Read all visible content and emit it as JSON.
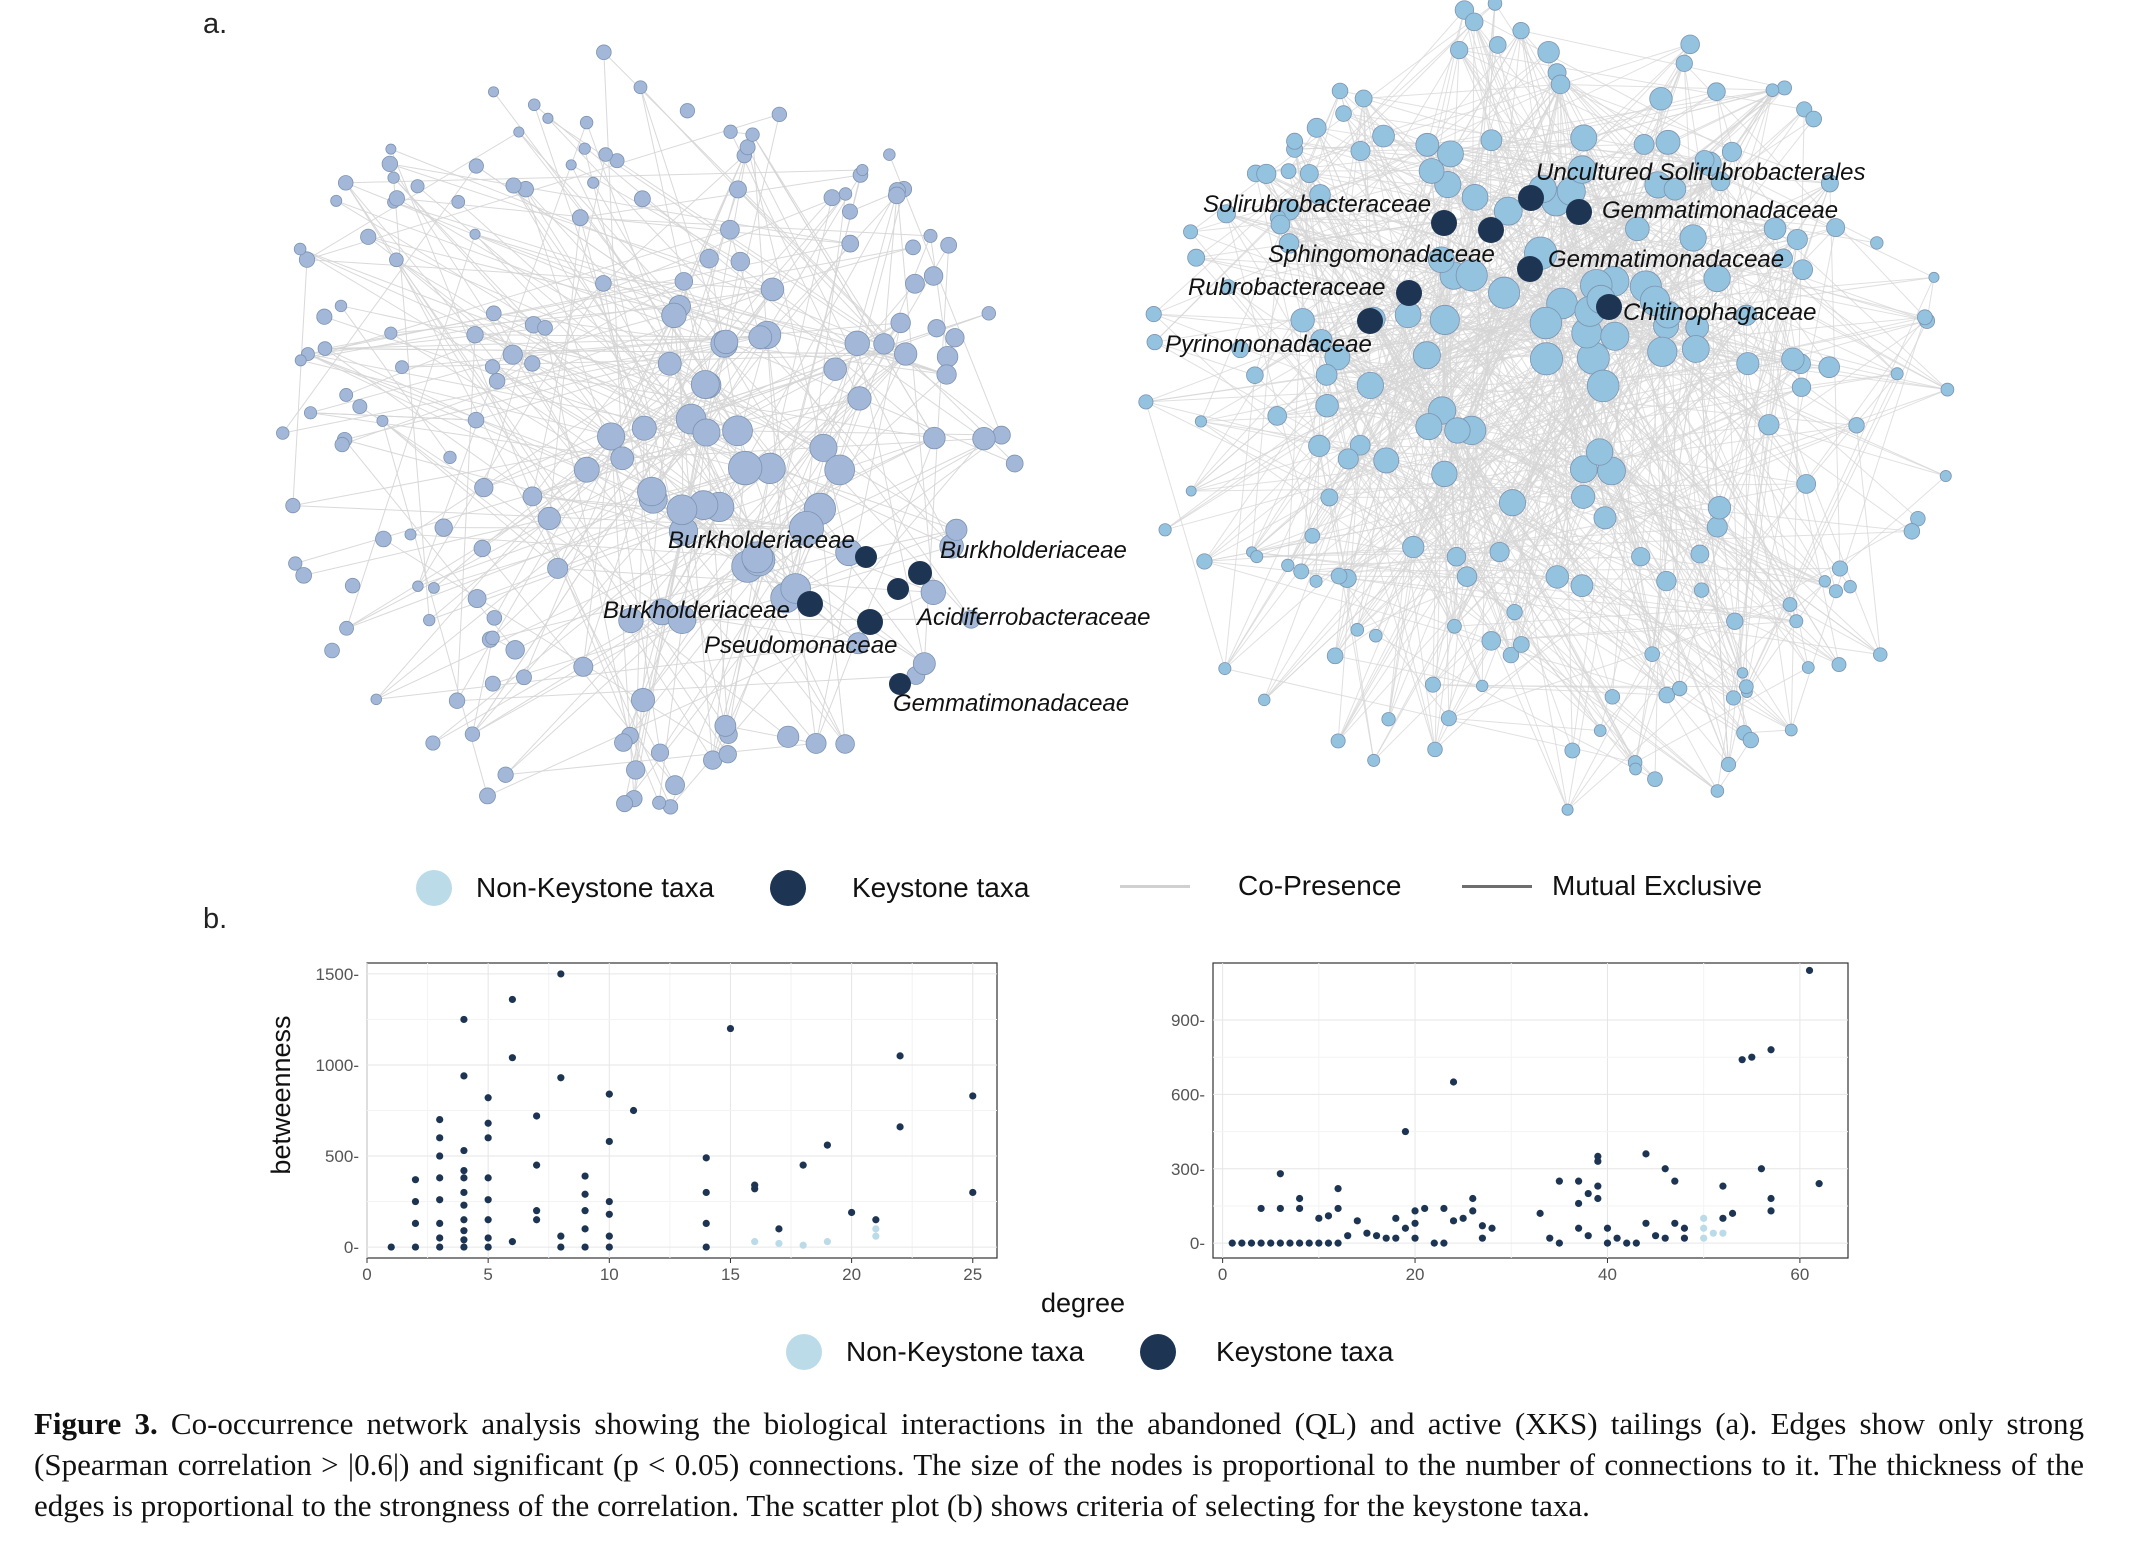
{
  "panels": {
    "a": "a.",
    "b": "b."
  },
  "colors": {
    "non_keystone_left": "#a3b8d9",
    "non_keystone_right": "#93c3df",
    "keystone": "#1d3553",
    "edge": "#d5d5d5",
    "edge_dark": "#6e6e6e",
    "scatter_non_keystone": "#bcdbe9"
  },
  "network": {
    "left_keystone_labels": [
      "Burkholderiaceae",
      "Burkholderiaceae",
      "Burkholderiaceae",
      "Acidiferrobacteraceae",
      "Pseudomonaceae",
      "Gemmatimonadaceae"
    ],
    "right_keystone_labels": [
      "Uncultured Solirubrobacterales",
      "Solirubrobacteraceae",
      "Gemmatimonadaceae",
      "Sphingomonadaceae",
      "Gemmatimonadaceae",
      "Rubrobacteraceae",
      "Chitinophagaceae",
      "Pyrinomonadaceae"
    ]
  },
  "legend_top": {
    "non_keystone": "Non-Keystone taxa",
    "keystone": "Keystone taxa",
    "co_presence": "Co-Presence",
    "mutual_exclusive": "Mutual Exclusive"
  },
  "legend_bottom": {
    "non_keystone": "Non-Keystone taxa",
    "keystone": "Keystone taxa"
  },
  "chart_data": [
    {
      "type": "scatter",
      "title": "",
      "xlabel": "degree",
      "ylabel": "betweenness",
      "xlim": [
        0,
        26
      ],
      "ylim": [
        -60,
        1560
      ],
      "xticks": [
        0,
        5,
        10,
        15,
        20,
        25
      ],
      "yticks": [
        0,
        500,
        1000,
        1500
      ],
      "grid": true,
      "series": [
        {
          "name": "Keystone taxa",
          "points": [
            [
              1,
              0
            ],
            [
              2,
              0
            ],
            [
              2,
              130
            ],
            [
              2,
              250
            ],
            [
              2,
              370
            ],
            [
              3,
              0
            ],
            [
              3,
              50
            ],
            [
              3,
              130
            ],
            [
              3,
              260
            ],
            [
              3,
              380
            ],
            [
              3,
              500
            ],
            [
              3,
              600
            ],
            [
              3,
              700
            ],
            [
              4,
              0
            ],
            [
              4,
              40
            ],
            [
              4,
              90
            ],
            [
              4,
              150
            ],
            [
              4,
              230
            ],
            [
              4,
              300
            ],
            [
              4,
              380
            ],
            [
              4,
              420
            ],
            [
              4,
              530
            ],
            [
              4,
              940
            ],
            [
              4,
              1250
            ],
            [
              5,
              0
            ],
            [
              5,
              50
            ],
            [
              5,
              150
            ],
            [
              5,
              260
            ],
            [
              5,
              380
            ],
            [
              5,
              600
            ],
            [
              5,
              680
            ],
            [
              5,
              820
            ],
            [
              6,
              30
            ],
            [
              6,
              1040
            ],
            [
              6,
              1360
            ],
            [
              7,
              150
            ],
            [
              7,
              200
            ],
            [
              7,
              450
            ],
            [
              7,
              720
            ],
            [
              8,
              0
            ],
            [
              8,
              60
            ],
            [
              8,
              930
            ],
            [
              8,
              1500
            ],
            [
              9,
              0
            ],
            [
              9,
              100
            ],
            [
              9,
              200
            ],
            [
              9,
              290
            ],
            [
              9,
              390
            ],
            [
              10,
              0
            ],
            [
              10,
              60
            ],
            [
              10,
              180
            ],
            [
              10,
              250
            ],
            [
              10,
              580
            ],
            [
              10,
              840
            ],
            [
              11,
              750
            ],
            [
              14,
              0
            ],
            [
              14,
              130
            ],
            [
              14,
              300
            ],
            [
              14,
              490
            ],
            [
              15,
              1200
            ],
            [
              16,
              320
            ],
            [
              16,
              340
            ],
            [
              17,
              100
            ],
            [
              18,
              450
            ],
            [
              19,
              560
            ],
            [
              20,
              190
            ],
            [
              21,
              150
            ],
            [
              22,
              660
            ],
            [
              22,
              1050
            ],
            [
              25,
              300
            ],
            [
              25,
              830
            ]
          ]
        },
        {
          "name": "Non-Keystone taxa",
          "points": [
            [
              16,
              30
            ],
            [
              17,
              20
            ],
            [
              18,
              10
            ],
            [
              19,
              30
            ],
            [
              21,
              60
            ],
            [
              21,
              100
            ]
          ]
        }
      ]
    },
    {
      "type": "scatter",
      "title": "",
      "xlabel": "degree",
      "ylabel": "",
      "xlim": [
        -1,
        65
      ],
      "ylim": [
        -60,
        1130
      ],
      "xticks": [
        0,
        20,
        40,
        60
      ],
      "yticks": [
        0,
        300,
        600,
        900
      ],
      "grid": true,
      "series": [
        {
          "name": "Keystone taxa",
          "points": [
            [
              1,
              0
            ],
            [
              2,
              0
            ],
            [
              3,
              0
            ],
            [
              4,
              0
            ],
            [
              5,
              0
            ],
            [
              6,
              0
            ],
            [
              7,
              0
            ],
            [
              8,
              0
            ],
            [
              9,
              0
            ],
            [
              10,
              0
            ],
            [
              11,
              0
            ],
            [
              12,
              0
            ],
            [
              4,
              140
            ],
            [
              6,
              280
            ],
            [
              6,
              140
            ],
            [
              8,
              180
            ],
            [
              8,
              140
            ],
            [
              10,
              100
            ],
            [
              11,
              110
            ],
            [
              12,
              220
            ],
            [
              12,
              140
            ],
            [
              13,
              30
            ],
            [
              14,
              90
            ],
            [
              15,
              40
            ],
            [
              16,
              30
            ],
            [
              17,
              20
            ],
            [
              18,
              20
            ],
            [
              18,
              100
            ],
            [
              19,
              450
            ],
            [
              19,
              60
            ],
            [
              20,
              130
            ],
            [
              20,
              80
            ],
            [
              20,
              20
            ],
            [
              21,
              140
            ],
            [
              22,
              0
            ],
            [
              23,
              0
            ],
            [
              23,
              140
            ],
            [
              24,
              650
            ],
            [
              24,
              90
            ],
            [
              25,
              100
            ],
            [
              26,
              180
            ],
            [
              26,
              130
            ],
            [
              27,
              70
            ],
            [
              27,
              20
            ],
            [
              28,
              60
            ],
            [
              33,
              120
            ],
            [
              34,
              20
            ],
            [
              35,
              0
            ],
            [
              35,
              250
            ],
            [
              37,
              250
            ],
            [
              37,
              160
            ],
            [
              37,
              60
            ],
            [
              38,
              200
            ],
            [
              38,
              30
            ],
            [
              39,
              350
            ],
            [
              39,
              330
            ],
            [
              39,
              230
            ],
            [
              39,
              180
            ],
            [
              40,
              60
            ],
            [
              40,
              0
            ],
            [
              41,
              20
            ],
            [
              42,
              0
            ],
            [
              43,
              0
            ],
            [
              44,
              360
            ],
            [
              44,
              80
            ],
            [
              45,
              30
            ],
            [
              46,
              300
            ],
            [
              46,
              20
            ],
            [
              47,
              250
            ],
            [
              47,
              80
            ],
            [
              48,
              20
            ],
            [
              48,
              60
            ],
            [
              52,
              230
            ],
            [
              52,
              100
            ],
            [
              53,
              120
            ],
            [
              54,
              740
            ],
            [
              55,
              750
            ],
            [
              56,
              300
            ],
            [
              57,
              130
            ],
            [
              57,
              180
            ],
            [
              57,
              780
            ],
            [
              61,
              1100
            ],
            [
              62,
              240
            ]
          ]
        },
        {
          "name": "Non-Keystone taxa",
          "points": [
            [
              50,
              20
            ],
            [
              50,
              60
            ],
            [
              50,
              100
            ],
            [
              51,
              40
            ],
            [
              52,
              40
            ]
          ]
        }
      ]
    }
  ],
  "caption": {
    "label": "Figure 3.",
    "text": "Co-occurrence network analysis showing the biological interactions in the abandoned (QL) and active (XKS) tailings (a). Edges show only strong (Spearman correlation > |0.6|) and significant (p < 0.05) connections. The size of the nodes is proportional to the number of connections to it. The thickness of the edges is proportional to the strongness of the correlation. The scatter plot (b) shows criteria of selecting for the keystone taxa."
  }
}
